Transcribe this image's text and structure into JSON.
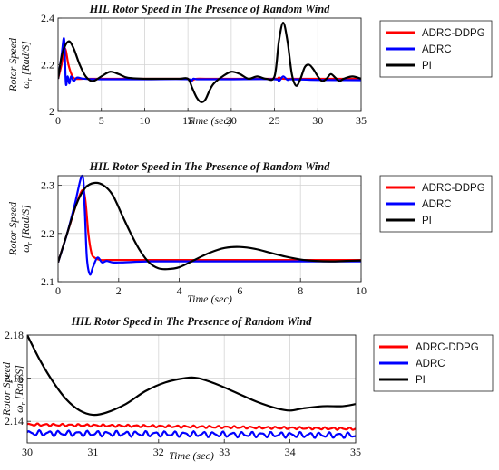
{
  "chart_data": [
    {
      "type": "line",
      "title": "HIL Rotor Speed in The Presence of Random Wind",
      "xlabel": "Time (sec)",
      "ylabel": [
        "Rotor Speed",
        "ω",
        "r",
        " [Rad/S]"
      ],
      "xlim": [
        0,
        35
      ],
      "ylim": [
        2.0,
        2.4
      ],
      "xticks": [
        0,
        5,
        10,
        15,
        20,
        25,
        30,
        35
      ],
      "yticks": [
        2,
        2.2,
        2.4
      ],
      "ytick_labels": [
        "2",
        "2.2",
        "2.4"
      ],
      "grid": true,
      "legend": "outside-right",
      "series": [
        {
          "name": "ADRC-DDPG",
          "color": "#ff0000",
          "x": [
            0,
            0.4,
            0.8,
            1.2,
            1.6,
            2,
            3,
            5,
            10,
            14,
            15,
            15.3,
            15.6,
            16,
            17,
            20,
            25,
            25.5,
            26,
            27,
            30,
            35
          ],
          "y": [
            2.14,
            2.2,
            2.27,
            2.2,
            2.155,
            2.14,
            2.14,
            2.14,
            2.14,
            2.14,
            2.14,
            2.13,
            2.135,
            2.14,
            2.14,
            2.14,
            2.14,
            2.145,
            2.14,
            2.14,
            2.14,
            2.14
          ]
        },
        {
          "name": "ADRC",
          "color": "#0000ff",
          "x": [
            0,
            0.4,
            0.7,
            0.9,
            1.1,
            1.3,
            1.5,
            1.8,
            2.2,
            3,
            5,
            10,
            15,
            15.3,
            15.6,
            16,
            17,
            20,
            25,
            25.5,
            26,
            26.5,
            27,
            30,
            35
          ],
          "y": [
            2.14,
            2.24,
            2.31,
            2.12,
            2.15,
            2.12,
            2.15,
            2.13,
            2.145,
            2.14,
            2.138,
            2.138,
            2.138,
            2.125,
            2.14,
            2.138,
            2.138,
            2.138,
            2.138,
            2.13,
            2.15,
            2.135,
            2.138,
            2.135,
            2.134
          ]
        },
        {
          "name": "PI",
          "color": "#000000",
          "x": [
            0,
            0.5,
            1.2,
            1.8,
            2.5,
            3.2,
            4,
            5,
            6,
            7,
            8,
            10,
            12,
            14,
            15,
            15.5,
            16,
            16.5,
            17,
            17.5,
            18,
            19,
            20,
            21,
            22,
            23,
            24,
            25,
            25.5,
            26,
            26.5,
            27,
            27.5,
            28,
            28.5,
            29,
            29.5,
            30,
            30.5,
            31,
            31.5,
            32,
            32.5,
            33,
            34,
            35
          ],
          "y": [
            2.14,
            2.25,
            2.3,
            2.27,
            2.2,
            2.15,
            2.13,
            2.15,
            2.17,
            2.16,
            2.145,
            2.14,
            2.14,
            2.14,
            2.14,
            2.1,
            2.06,
            2.04,
            2.05,
            2.09,
            2.12,
            2.15,
            2.17,
            2.16,
            2.14,
            2.15,
            2.14,
            2.15,
            2.3,
            2.38,
            2.3,
            2.16,
            2.11,
            2.14,
            2.19,
            2.2,
            2.18,
            2.15,
            2.13,
            2.14,
            2.16,
            2.145,
            2.13,
            2.14,
            2.15,
            2.14
          ]
        }
      ]
    },
    {
      "type": "line",
      "title": "HIL Rotor Speed in The Presence of Random Wind",
      "xlabel": "Time (sec)",
      "ylabel": [
        "Rotor Speed",
        "ω",
        "r",
        " [Rad/S]"
      ],
      "xlim": [
        0,
        10
      ],
      "ylim": [
        2.1,
        2.32
      ],
      "xticks": [
        0,
        2,
        4,
        6,
        8,
        10
      ],
      "yticks": [
        2.1,
        2.2,
        2.3
      ],
      "ytick_labels": [
        "2.1",
        "2.2",
        "2.3"
      ],
      "grid": true,
      "legend": "outside-right",
      "series": [
        {
          "name": "ADRC-DDPG",
          "color": "#ff0000",
          "x": [
            0,
            0.2,
            0.4,
            0.6,
            0.8,
            0.9,
            1.0,
            1.1,
            1.2,
            1.4,
            1.6,
            2,
            3,
            4,
            6,
            8,
            10
          ],
          "y": [
            2.14,
            2.18,
            2.22,
            2.26,
            2.29,
            2.27,
            2.2,
            2.16,
            2.15,
            2.145,
            2.145,
            2.145,
            2.145,
            2.145,
            2.145,
            2.145,
            2.145
          ]
        },
        {
          "name": "ADRC",
          "color": "#0000ff",
          "x": [
            0,
            0.3,
            0.55,
            0.8,
            0.88,
            0.95,
            1.05,
            1.15,
            1.3,
            1.45,
            1.6,
            1.8,
            2.1,
            3,
            4,
            6,
            8,
            10
          ],
          "y": [
            2.14,
            2.2,
            2.26,
            2.32,
            2.25,
            2.15,
            2.115,
            2.13,
            2.15,
            2.14,
            2.143,
            2.14,
            2.14,
            2.142,
            2.142,
            2.142,
            2.142,
            2.142
          ]
        },
        {
          "name": "PI",
          "color": "#000000",
          "x": [
            0,
            0.3,
            0.6,
            0.9,
            1.2,
            1.5,
            1.8,
            2.1,
            2.4,
            2.7,
            3.0,
            3.3,
            3.6,
            4.0,
            4.5,
            5.0,
            5.5,
            6.0,
            6.5,
            7.0,
            7.5,
            8.0,
            8.5,
            9.0,
            9.5,
            10
          ],
          "y": [
            2.14,
            2.2,
            2.26,
            2.295,
            2.305,
            2.3,
            2.28,
            2.24,
            2.2,
            2.165,
            2.14,
            2.128,
            2.126,
            2.13,
            2.145,
            2.16,
            2.17,
            2.172,
            2.168,
            2.16,
            2.152,
            2.146,
            2.143,
            2.142,
            2.143,
            2.144
          ]
        }
      ]
    },
    {
      "type": "line",
      "title": "HIL Rotor Speed in The Presence of Random Wind",
      "xlabel": "Time (sec)",
      "ylabel": [
        "Rotor Speed",
        "ω",
        "r",
        " [Rad/S]"
      ],
      "xlim": [
        30,
        35
      ],
      "ylim": [
        2.13,
        2.18
      ],
      "xticks": [
        30,
        31,
        32,
        33,
        34,
        35
      ],
      "yticks": [
        2.14,
        2.16,
        2.18
      ],
      "ytick_labels": [
        "2.14",
        "2.16",
        "2.18"
      ],
      "grid": true,
      "legend": "outside-right",
      "series": [
        {
          "name": "ADRC-DDPG",
          "color": "#ff0000",
          "x": [
            30,
            35
          ],
          "y": [
            2.1385,
            2.1365
          ],
          "noise": 0.0006,
          "cycles": 40
        },
        {
          "name": "ADRC",
          "color": "#0000ff",
          "x": [
            30,
            35
          ],
          "y": [
            2.1345,
            2.1335
          ],
          "noise": 0.0014,
          "cycles": 34
        },
        {
          "name": "PI",
          "color": "#000000",
          "x": [
            30,
            30.2,
            30.4,
            30.6,
            30.8,
            31.0,
            31.2,
            31.5,
            31.8,
            32.1,
            32.4,
            32.6,
            32.9,
            33.2,
            33.5,
            33.8,
            34.0,
            34.2,
            34.5,
            34.8,
            35
          ],
          "y": [
            2.18,
            2.168,
            2.158,
            2.15,
            2.145,
            2.143,
            2.144,
            2.148,
            2.154,
            2.158,
            2.16,
            2.16,
            2.157,
            2.153,
            2.149,
            2.146,
            2.145,
            2.146,
            2.147,
            2.147,
            2.148
          ]
        }
      ]
    }
  ]
}
